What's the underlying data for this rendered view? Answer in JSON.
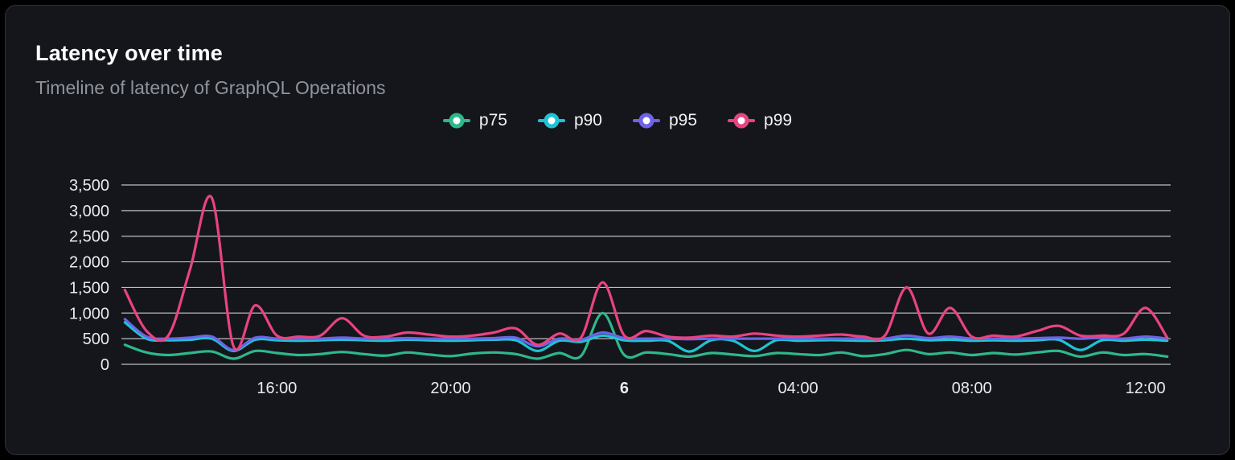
{
  "header": {
    "title": "Latency over time",
    "subtitle": "Timeline of latency of GraphQL Operations"
  },
  "chart_data": {
    "type": "line",
    "title": "Latency over time",
    "xlabel": "",
    "ylabel": "",
    "grid": true,
    "legend_position": "top",
    "xlim": [
      12.42,
      36.58
    ],
    "ylim": [
      0,
      3500
    ],
    "x_unit": "time of day (hours, 24 = midnight of day 6)",
    "x_hours": [
      12.5,
      13,
      13.5,
      14,
      14.5,
      15,
      15.5,
      16,
      16.5,
      17,
      17.5,
      18,
      18.5,
      19,
      19.5,
      20,
      20.5,
      21,
      21.5,
      22,
      22.5,
      23,
      23.5,
      24,
      24.5,
      25,
      25.5,
      26,
      26.5,
      27,
      27.5,
      28,
      28.5,
      29,
      29.5,
      30,
      30.5,
      31,
      31.5,
      32,
      32.5,
      33,
      33.5,
      34,
      34.5,
      35,
      35.5,
      36,
      36.5
    ],
    "series": [
      {
        "name": "p75",
        "color": "#2eb88a",
        "values": [
          380,
          230,
          180,
          220,
          250,
          110,
          260,
          220,
          180,
          200,
          240,
          200,
          170,
          230,
          190,
          160,
          210,
          230,
          200,
          110,
          220,
          160,
          1000,
          180,
          230,
          200,
          150,
          220,
          190,
          160,
          220,
          200,
          180,
          230,
          160,
          200,
          280,
          200,
          230,
          180,
          220,
          190,
          230,
          260,
          150,
          230,
          180,
          200,
          150
        ]
      },
      {
        "name": "p90",
        "color": "#1fc3d4",
        "values": [
          820,
          500,
          470,
          480,
          500,
          260,
          480,
          470,
          460,
          470,
          480,
          470,
          460,
          480,
          470,
          460,
          470,
          480,
          470,
          260,
          460,
          440,
          560,
          470,
          460,
          460,
          250,
          470,
          460,
          260,
          470,
          460,
          470,
          470,
          460,
          470,
          500,
          470,
          480,
          460,
          470,
          460,
          470,
          480,
          280,
          470,
          460,
          480,
          460
        ]
      },
      {
        "name": "p95",
        "color": "#6e63e6",
        "values": [
          880,
          540,
          500,
          520,
          540,
          280,
          520,
          500,
          500,
          500,
          520,
          500,
          500,
          510,
          500,
          500,
          500,
          510,
          520,
          350,
          500,
          480,
          620,
          510,
          500,
          500,
          490,
          500,
          500,
          500,
          500,
          500,
          500,
          500,
          500,
          500,
          560,
          510,
          540,
          500,
          500,
          500,
          510,
          520,
          500,
          520,
          500,
          540,
          500
        ]
      },
      {
        "name": "p99",
        "color": "#e8447f",
        "values": [
          1450,
          650,
          560,
          1850,
          3250,
          350,
          1150,
          560,
          540,
          560,
          900,
          560,
          540,
          620,
          580,
          540,
          560,
          620,
          700,
          380,
          600,
          520,
          1600,
          560,
          650,
          540,
          520,
          560,
          540,
          600,
          560,
          540,
          560,
          580,
          540,
          560,
          1500,
          600,
          1100,
          540,
          560,
          540,
          650,
          750,
          560,
          560,
          600,
          1100,
          520
        ]
      }
    ],
    "yticks": [
      {
        "v": 0,
        "label": "0"
      },
      {
        "v": 500,
        "label": "500"
      },
      {
        "v": 1000,
        "label": "1,000"
      },
      {
        "v": 1500,
        "label": "1,500"
      },
      {
        "v": 2000,
        "label": "2,000"
      },
      {
        "v": 2500,
        "label": "2,500"
      },
      {
        "v": 3000,
        "label": "3,000"
      },
      {
        "v": 3500,
        "label": "3,500"
      }
    ],
    "xticks": [
      {
        "v": 16,
        "label": "16:00",
        "bold": false
      },
      {
        "v": 20,
        "label": "20:00",
        "bold": false
      },
      {
        "v": 24,
        "label": "6",
        "bold": true
      },
      {
        "v": 28,
        "label": "04:00",
        "bold": false
      },
      {
        "v": 32,
        "label": "08:00",
        "bold": false
      },
      {
        "v": 36,
        "label": "12:00",
        "bold": false
      }
    ]
  }
}
